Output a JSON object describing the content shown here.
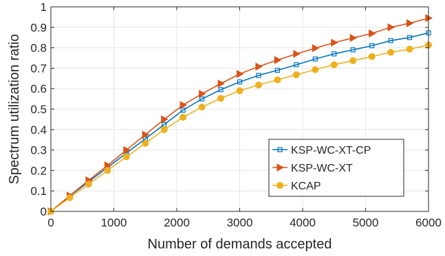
{
  "chart_data": {
    "type": "line",
    "xlabel": "Number of demands accepted",
    "ylabel": "Spectrum utilization ratio",
    "xlim": [
      0,
      6000
    ],
    "ylim": [
      0,
      1
    ],
    "xticks": [
      0,
      1000,
      2000,
      3000,
      4000,
      5000,
      6000
    ],
    "xtick_labels": [
      "0",
      "1000",
      "2000",
      "3000",
      "4000",
      "5000",
      "6000"
    ],
    "yticks": [
      0,
      0.1,
      0.2,
      0.3,
      0.4,
      0.5,
      0.6,
      0.7,
      0.8,
      0.9,
      1
    ],
    "ytick_labels": [
      "0",
      "0.1",
      "0.2",
      "0.3",
      "0.4",
      "0.5",
      "0.6",
      "0.7",
      "0.8",
      "0.9",
      "1"
    ],
    "grid": true,
    "legend_position": "bottom-right",
    "x": [
      0,
      300,
      600,
      900,
      1200,
      1500,
      1800,
      2100,
      2400,
      2700,
      3000,
      3300,
      3600,
      3900,
      4200,
      4500,
      4800,
      5100,
      5400,
      5700,
      6000
    ],
    "series": [
      {
        "name": "KSP-WC-XT-CP",
        "color": "#0072BD",
        "marker": "square",
        "values": [
          0,
          0.075,
          0.145,
          0.215,
          0.285,
          0.355,
          0.425,
          0.495,
          0.55,
          0.595,
          0.633,
          0.665,
          0.69,
          0.717,
          0.745,
          0.77,
          0.79,
          0.81,
          0.835,
          0.85,
          0.873
        ]
      },
      {
        "name": "KSP-WC-XT",
        "color": "#D95319",
        "marker": "triangle-right",
        "values": [
          0,
          0.077,
          0.152,
          0.225,
          0.3,
          0.375,
          0.45,
          0.52,
          0.575,
          0.625,
          0.672,
          0.708,
          0.74,
          0.77,
          0.798,
          0.825,
          0.848,
          0.87,
          0.9,
          0.92,
          0.945
        ]
      },
      {
        "name": "KCAP",
        "color": "#EDB120",
        "marker": "circle",
        "values": [
          0,
          0.067,
          0.133,
          0.2,
          0.267,
          0.333,
          0.4,
          0.46,
          0.51,
          0.553,
          0.59,
          0.618,
          0.643,
          0.668,
          0.693,
          0.717,
          0.737,
          0.757,
          0.778,
          0.793,
          0.813
        ]
      }
    ]
  }
}
